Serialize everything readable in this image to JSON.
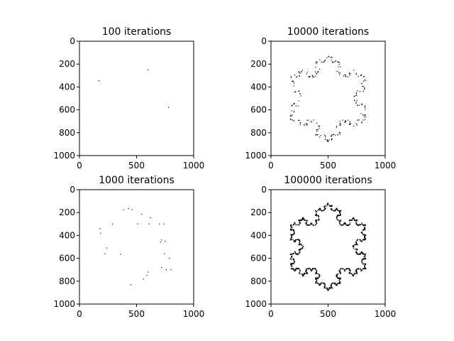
{
  "chart_data": [
    {
      "type": "scatter",
      "title": "100 iterations",
      "xlim": [
        0,
        1000
      ],
      "ylim": [
        1000,
        0
      ],
      "xticks": [
        "0",
        "500",
        "1000"
      ],
      "yticks": [
        "0",
        "200",
        "400",
        "600",
        "800",
        "1000"
      ],
      "points": [
        [
          600,
          250
        ],
        [
          170,
          345
        ],
        [
          780,
          580
        ]
      ]
    },
    {
      "type": "scatter",
      "title": "10000 iterations",
      "xlim": [
        0,
        1000
      ],
      "ylim": [
        1000,
        0
      ],
      "xticks": [
        "0",
        "500",
        "1000"
      ],
      "yticks": [
        "0",
        "200",
        "400",
        "600",
        "800",
        "1000"
      ],
      "curve": "koch-snowflake",
      "point_count": 260
    },
    {
      "type": "scatter",
      "title": "1000 iterations",
      "xlim": [
        0,
        1000
      ],
      "ylim": [
        1000,
        0
      ],
      "xticks": [
        "0",
        "500",
        "1000"
      ],
      "yticks": [
        "0",
        "200",
        "400",
        "600",
        "800",
        "1000"
      ],
      "points": [
        [
          180,
          340
        ],
        [
          185,
          380
        ],
        [
          240,
          510
        ],
        [
          225,
          560
        ],
        [
          290,
          300
        ],
        [
          360,
          565
        ],
        [
          385,
          175
        ],
        [
          430,
          165
        ],
        [
          460,
          175
        ],
        [
          450,
          830
        ],
        [
          510,
          300
        ],
        [
          545,
          215
        ],
        [
          560,
          780
        ],
        [
          590,
          750
        ],
        [
          600,
          720
        ],
        [
          610,
          300
        ],
        [
          620,
          245
        ],
        [
          700,
          300
        ],
        [
          720,
          440
        ],
        [
          710,
          460
        ],
        [
          740,
          300
        ],
        [
          745,
          560
        ],
        [
          750,
          450
        ],
        [
          760,
          700
        ],
        [
          720,
          680
        ],
        [
          790,
          600
        ],
        [
          800,
          700
        ]
      ]
    },
    {
      "type": "scatter",
      "title": "100000 iterations",
      "xlim": [
        0,
        1000
      ],
      "ylim": [
        1000,
        0
      ],
      "xticks": [
        "0",
        "500",
        "1000"
      ],
      "yticks": [
        "0",
        "200",
        "400",
        "600",
        "800",
        "1000"
      ],
      "curve": "koch-snowflake",
      "point_count": 1400
    }
  ]
}
